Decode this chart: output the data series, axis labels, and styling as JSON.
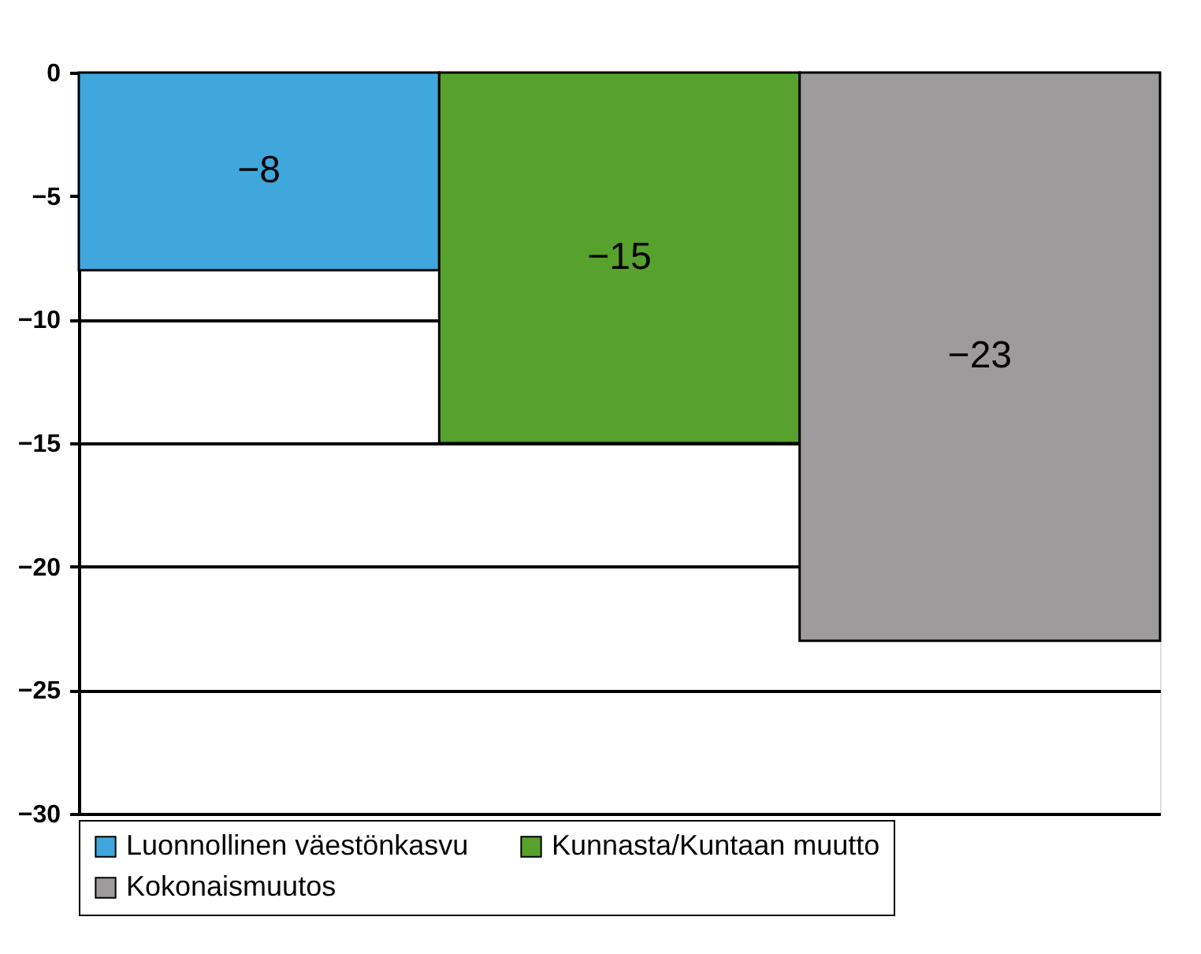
{
  "chart_data": {
    "type": "bar",
    "categories": [
      null,
      null,
      null
    ],
    "series": [
      {
        "name": "Luonnollinen väestönkasvu",
        "color": "#3fa7dc",
        "values": [
          -8,
          null,
          null
        ]
      },
      {
        "name": "Kunnasta/Kuntaan muutto",
        "color": "#56a22c",
        "values": [
          null,
          -15,
          null
        ]
      },
      {
        "name": "Kokonaismuutos",
        "color": "#9d9b9b",
        "values": [
          null,
          null,
          -23
        ]
      }
    ],
    "ylim": [
      -30,
      0
    ],
    "yticks": [
      0,
      -5,
      -10,
      -15,
      -20,
      -25,
      -30
    ],
    "grid": "y",
    "legend": "bottom",
    "tick_labels": "y",
    "data_labels": true
  }
}
